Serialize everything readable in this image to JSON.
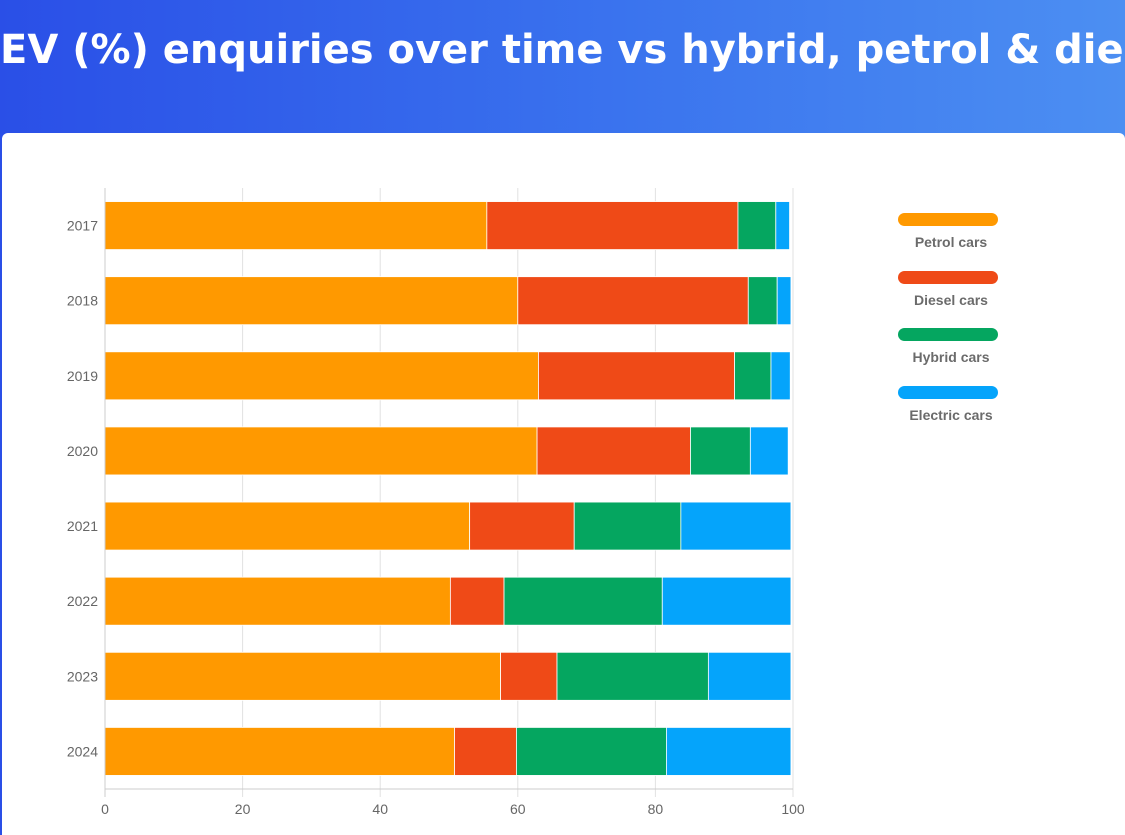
{
  "header": {
    "title": "EV (%) enquiries over time vs hybrid, petrol & diesel"
  },
  "chart_data": {
    "type": "bar",
    "orientation": "horizontal",
    "stacked": true,
    "title": "EV (%) enquiries over time vs hybrid, petrol & diesel",
    "xlabel": "",
    "ylabel": "",
    "xlim": [
      0,
      100
    ],
    "x_ticks": [
      "0",
      "20",
      "40",
      "60",
      "80",
      "100"
    ],
    "x_tick_values": [
      0,
      20,
      40,
      60,
      80,
      100
    ],
    "grid": "vertical",
    "legend_position": "right",
    "categories": [
      "2017",
      "2018",
      "2019",
      "2020",
      "2021",
      "2022",
      "2023",
      "2024"
    ],
    "series": [
      {
        "name": "Petrol cars",
        "color": "#ff9900",
        "values": [
          55.5,
          60,
          63,
          62.8,
          53,
          50.2,
          57.5,
          50.8
        ]
      },
      {
        "name": "Diesel cars",
        "color": "#ef4a17",
        "values": [
          36.5,
          33.5,
          28.5,
          22.3,
          15.2,
          7.8,
          8.2,
          9
        ]
      },
      {
        "name": "Hybrid cars",
        "color": "#05a660",
        "values": [
          5.5,
          4.2,
          5.3,
          8.7,
          15.5,
          23,
          22,
          21.8
        ]
      },
      {
        "name": "Electric cars",
        "color": "#05a4fb",
        "values": [
          2,
          2,
          2.8,
          5.5,
          16,
          18.7,
          12,
          18.1
        ]
      }
    ]
  }
}
